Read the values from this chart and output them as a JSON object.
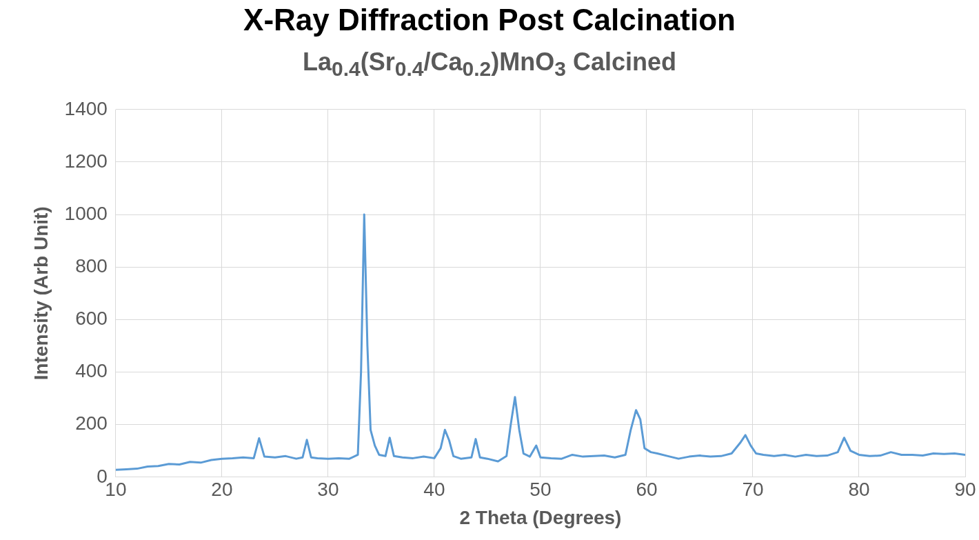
{
  "chart_data": {
    "type": "line",
    "title": "X-Ray Diffraction Post Calcination",
    "subtitle": "La$_{0.4}$(Sr$_{0.4}$/Ca$_{0.2}$)MnO$_{3}$ Calcined",
    "xlabel": "2 Theta (Degrees)",
    "ylabel": "Intensity (Arb Unit)",
    "xlim": [
      10,
      90
    ],
    "xticks": [
      10,
      20,
      30,
      40,
      50,
      60,
      70,
      80,
      90
    ],
    "ylim": [
      0,
      1400
    ],
    "yticks": [
      0,
      200,
      400,
      600,
      800,
      1000,
      1200,
      1400
    ],
    "grid": true,
    "legend": false,
    "series": [
      {
        "color": "#5b9bd5",
        "x": [
          10,
          11,
          12,
          13,
          14,
          15,
          16,
          17,
          18,
          19,
          20,
          21,
          22,
          23,
          23.5,
          24,
          25,
          26,
          27,
          27.6,
          28,
          28.4,
          29,
          30,
          31,
          32,
          32.8,
          33.1,
          33.4,
          33.7,
          34,
          34.4,
          34.8,
          35.4,
          35.8,
          36.2,
          37,
          38,
          39,
          40,
          40.6,
          41,
          41.4,
          41.8,
          42.5,
          43.5,
          43.9,
          44.3,
          45,
          46,
          46.8,
          47.2,
          47.6,
          48,
          48.4,
          49,
          49.6,
          50,
          51,
          52,
          53,
          54,
          55,
          56,
          57,
          58,
          58.5,
          59,
          59.4,
          59.8,
          60.4,
          61,
          62,
          63,
          64,
          65,
          66,
          67,
          68,
          68.8,
          69.3,
          69.8,
          70.3,
          71,
          72,
          73,
          74,
          75,
          76,
          77,
          78,
          78.6,
          79.2,
          80,
          81,
          82,
          83,
          84,
          85,
          86,
          87,
          88,
          89,
          90
        ],
        "values": [
          28,
          30,
          32,
          40,
          42,
          50,
          48,
          58,
          55,
          65,
          70,
          72,
          75,
          72,
          148,
          78,
          75,
          80,
          70,
          75,
          142,
          75,
          72,
          70,
          72,
          70,
          85,
          400,
          1000,
          500,
          180,
          120,
          85,
          80,
          150,
          80,
          75,
          72,
          78,
          72,
          110,
          180,
          140,
          80,
          70,
          75,
          145,
          75,
          70,
          60,
          80,
          200,
          305,
          180,
          90,
          78,
          120,
          75,
          72,
          70,
          85,
          78,
          80,
          82,
          75,
          85,
          180,
          255,
          220,
          110,
          95,
          90,
          80,
          70,
          78,
          82,
          78,
          80,
          90,
          130,
          160,
          120,
          90,
          85,
          80,
          85,
          78,
          85,
          80,
          82,
          95,
          150,
          100,
          85,
          80,
          82,
          95,
          85,
          85,
          82,
          90,
          88,
          90,
          85
        ]
      }
    ]
  }
}
